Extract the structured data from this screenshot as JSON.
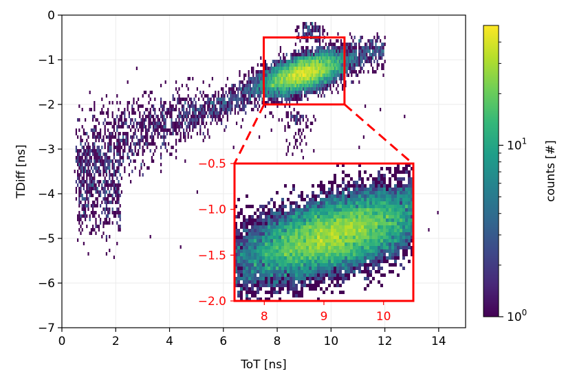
{
  "chart_data": [
    {
      "type": "heatmap",
      "name": "main-2d-histogram",
      "xlabel": "ToT [ns]",
      "ylabel": "TDiff [ns]",
      "xlim": [
        0,
        15
      ],
      "ylim": [
        -7,
        0
      ],
      "xticks": [
        0,
        2,
        4,
        6,
        8,
        10,
        12,
        14
      ],
      "xtick_labels": [
        "0",
        "2",
        "4",
        "6",
        "8",
        "10",
        "12",
        "14"
      ],
      "yticks": [
        0,
        -1,
        -2,
        -3,
        -4,
        -5,
        -6,
        -7
      ],
      "ytick_labels": [
        "0",
        "−1",
        "−2",
        "−3",
        "−4",
        "−5",
        "−6",
        "−7"
      ],
      "grid": true,
      "dense_cluster": {
        "x_center": 9.0,
        "y_center": -1.3,
        "x_sigma": 0.75,
        "y_sigma": 0.22
      },
      "trend_points": [
        [
          0.5,
          -3.4
        ],
        [
          1.5,
          -3.0
        ],
        [
          3.0,
          -2.6
        ],
        [
          4.5,
          -2.3
        ],
        [
          6.0,
          -2.0
        ],
        [
          7.5,
          -1.6
        ],
        [
          9.0,
          -1.3
        ],
        [
          10.5,
          -1.0
        ],
        [
          11.5,
          -0.85
        ]
      ],
      "zoom_box": {
        "x_range": [
          7.5,
          10.5
        ],
        "y_range": [
          -2.0,
          -0.5
        ],
        "color": "#ff0000"
      }
    },
    {
      "type": "heatmap",
      "name": "inset-zoom",
      "xlim": [
        7.5,
        10.5
      ],
      "ylim": [
        -2.0,
        -0.5
      ],
      "xticks": [
        8,
        9,
        10
      ],
      "xtick_labels": [
        "8",
        "9",
        "10"
      ],
      "yticks": [
        -0.5,
        -1.0,
        -1.5,
        -2.0
      ],
      "ytick_labels": [
        "−0.5",
        "−1.0",
        "−1.5",
        "−2.0"
      ],
      "tick_color": "#ff0000"
    },
    {
      "type": "colorbar",
      "name": "counts-colorbar",
      "label": "counts [#]",
      "scale": "log",
      "range": [
        1,
        50
      ],
      "tick_values": [
        1,
        10
      ],
      "tick_labels": [
        {
          "base": "10",
          "exp": "0"
        },
        {
          "base": "10",
          "exp": "1"
        }
      ],
      "colormap": "viridis",
      "colormap_stops": [
        "#440154",
        "#482878",
        "#3e4989",
        "#31688e",
        "#26828e",
        "#1f9e89",
        "#35b779",
        "#6ece58",
        "#b5de2b",
        "#fde725"
      ]
    }
  ],
  "colors": {
    "accent": "#ff0000",
    "axis": "#000000",
    "grid": "#ebebeb"
  }
}
